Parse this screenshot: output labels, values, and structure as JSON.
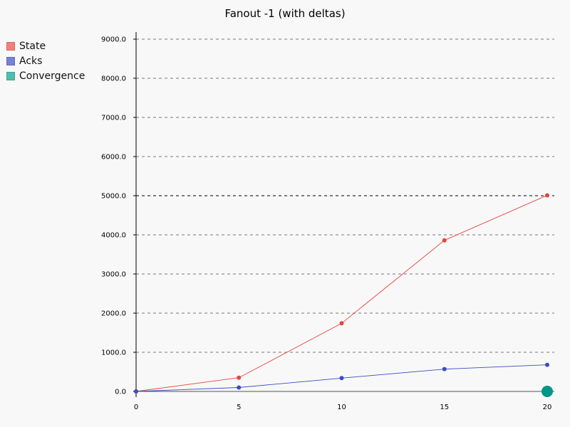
{
  "chart_data": {
    "type": "line",
    "title": "Fanout -1 (with deltas)",
    "x": [
      0,
      5,
      10,
      15,
      20
    ],
    "xticks": [
      "0",
      "5",
      "10",
      "15",
      "20"
    ],
    "yticks": [
      "0.0",
      "1000.0",
      "2000.0",
      "3000.0",
      "4000.0",
      "5000.0",
      "6000.0",
      "7000.0",
      "8000.0",
      "9000.0"
    ],
    "xlim": [
      0,
      20
    ],
    "ylim": [
      0,
      9000
    ],
    "grid": true,
    "legend_position": "top-left",
    "highlight_y": 5000,
    "series": [
      {
        "name": "State",
        "color": "#e8423a",
        "swatch": "#f58079",
        "values": [
          0,
          350,
          1740,
          3860,
          5010
        ]
      },
      {
        "name": "Acks",
        "color": "#3b4cc0",
        "swatch": "#7781d6",
        "values": [
          0,
          100,
          340,
          570,
          680
        ]
      },
      {
        "name": "Convergence",
        "color": "#009688",
        "swatch": "#4dbdaf",
        "values": [
          null,
          null,
          null,
          null,
          0
        ]
      }
    ]
  }
}
